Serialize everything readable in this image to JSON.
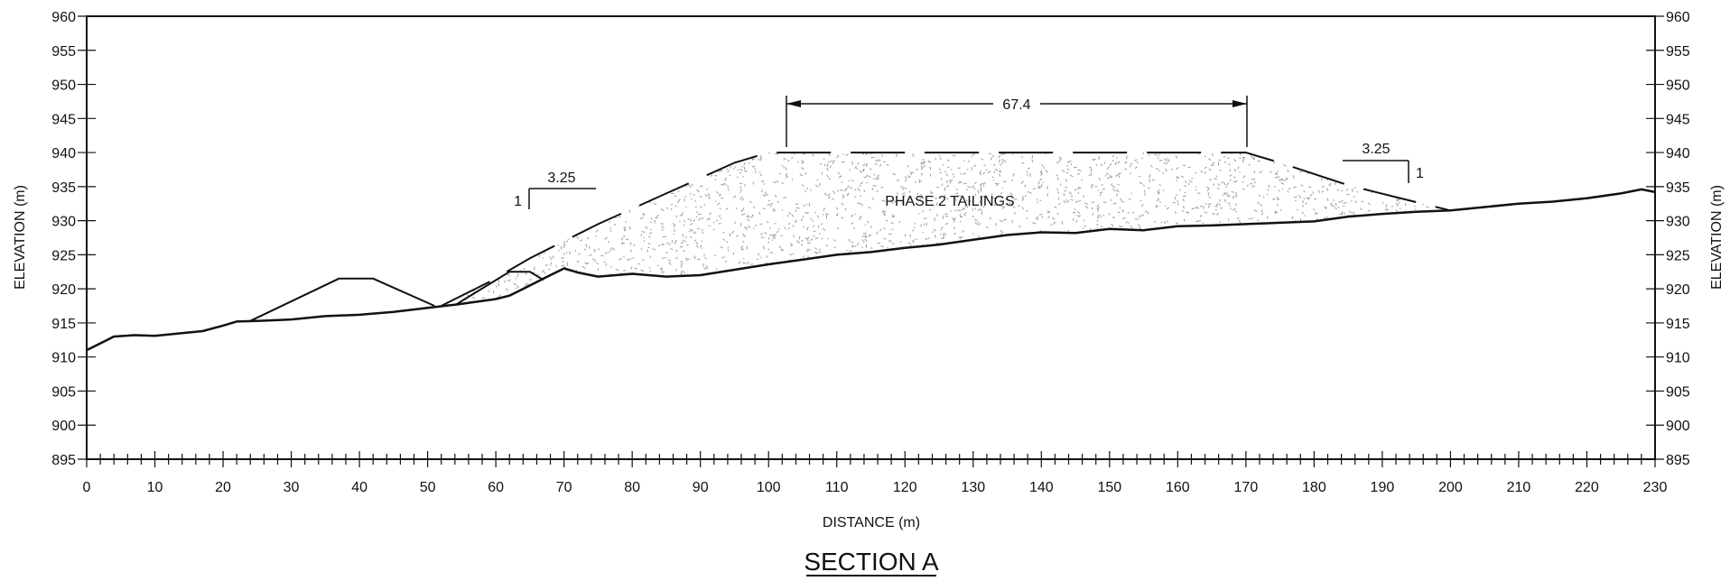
{
  "section_title": "SECTION A",
  "axes": {
    "xlabel": "DISTANCE (m)",
    "ylabel_left": "ELEVATION (m)",
    "ylabel_right": "ELEVATION (m)",
    "xlim": [
      0,
      230
    ],
    "ylim": [
      895,
      960
    ],
    "x_tick_labels": [
      "0",
      "10",
      "20",
      "30",
      "40",
      "50",
      "60",
      "70",
      "80",
      "90",
      "100",
      "110",
      "120",
      "130",
      "140",
      "150",
      "160",
      "170",
      "180",
      "190",
      "200",
      "210",
      "220",
      "230"
    ],
    "y_tick_labels": [
      "960",
      "955",
      "950",
      "945",
      "940",
      "935",
      "930",
      "925",
      "920",
      "915",
      "910",
      "905",
      "900",
      "895"
    ]
  },
  "labels": {
    "material": "PHASE 2 TAILINGS",
    "crest_width": "67.4",
    "slope_left_run": "3.25",
    "slope_left_rise": "1",
    "slope_right_run": "3.25",
    "slope_right_rise": "1"
  },
  "colors": {
    "line": "#111111",
    "stipple": "#9a9a9a",
    "background": "#ffffff"
  },
  "chart_data": {
    "type": "cross-section",
    "xlim": [
      0,
      230
    ],
    "ylim": [
      895,
      960
    ],
    "ground_profile": [
      [
        0,
        911
      ],
      [
        2,
        912
      ],
      [
        4,
        913
      ],
      [
        7,
        913.2
      ],
      [
        10,
        913.1
      ],
      [
        14,
        913.5
      ],
      [
        17,
        913.8
      ],
      [
        20,
        914.6
      ],
      [
        22,
        915.2
      ],
      [
        25,
        915.3
      ],
      [
        30,
        915.5
      ],
      [
        35,
        916
      ],
      [
        40,
        916.2
      ],
      [
        45,
        916.6
      ],
      [
        50,
        917.2
      ],
      [
        55,
        917.8
      ],
      [
        60,
        918.5
      ],
      [
        62,
        919
      ],
      [
        64,
        920
      ],
      [
        67,
        921.5
      ],
      [
        70,
        923
      ],
      [
        72,
        922.4
      ],
      [
        75,
        921.8
      ],
      [
        80,
        922.2
      ],
      [
        85,
        921.8
      ],
      [
        90,
        922
      ],
      [
        95,
        922.8
      ],
      [
        100,
        923.6
      ],
      [
        105,
        924.3
      ],
      [
        110,
        925
      ],
      [
        115,
        925.4
      ],
      [
        120,
        926
      ],
      [
        125,
        926.5
      ],
      [
        130,
        927.2
      ],
      [
        135,
        927.9
      ],
      [
        140,
        928.3
      ],
      [
        145,
        928.2
      ],
      [
        150,
        928.8
      ],
      [
        155,
        928.6
      ],
      [
        160,
        929.2
      ],
      [
        165,
        929.3
      ],
      [
        170,
        929.5
      ],
      [
        175,
        929.7
      ],
      [
        180,
        929.9
      ],
      [
        185,
        930.6
      ],
      [
        190,
        931
      ],
      [
        195,
        931.3
      ],
      [
        200,
        931.5
      ],
      [
        205,
        932
      ],
      [
        210,
        932.5
      ],
      [
        215,
        932.8
      ],
      [
        220,
        933.3
      ],
      [
        225,
        934
      ],
      [
        228,
        934.6
      ],
      [
        230,
        934.2
      ]
    ],
    "tailings_outline": [
      [
        52,
        917.5
      ],
      [
        59,
        921
      ],
      [
        65,
        924.5
      ],
      [
        75,
        929.5
      ],
      [
        85,
        934
      ],
      [
        95,
        938.5
      ],
      [
        100,
        940
      ],
      [
        170,
        940
      ],
      [
        175,
        938.5
      ],
      [
        185,
        935.2
      ],
      [
        193,
        933.2
      ],
      [
        200,
        931.5
      ]
    ],
    "starter_dam_1": [
      [
        24,
        915.3
      ],
      [
        37,
        921.5
      ],
      [
        42,
        921.5
      ],
      [
        51,
        917.5
      ]
    ],
    "starter_dam_2": [
      [
        54,
        917.6
      ],
      [
        62,
        922.5
      ],
      [
        65,
        922.5
      ],
      [
        67,
        921.3
      ]
    ],
    "crest_dimension": {
      "x_start": 102,
      "x_end": 170,
      "elevation": 946.4,
      "value": 67.4
    },
    "slope_left": {
      "run": 3.25,
      "rise": 1
    },
    "slope_right": {
      "run": 3.25,
      "rise": 1
    }
  }
}
